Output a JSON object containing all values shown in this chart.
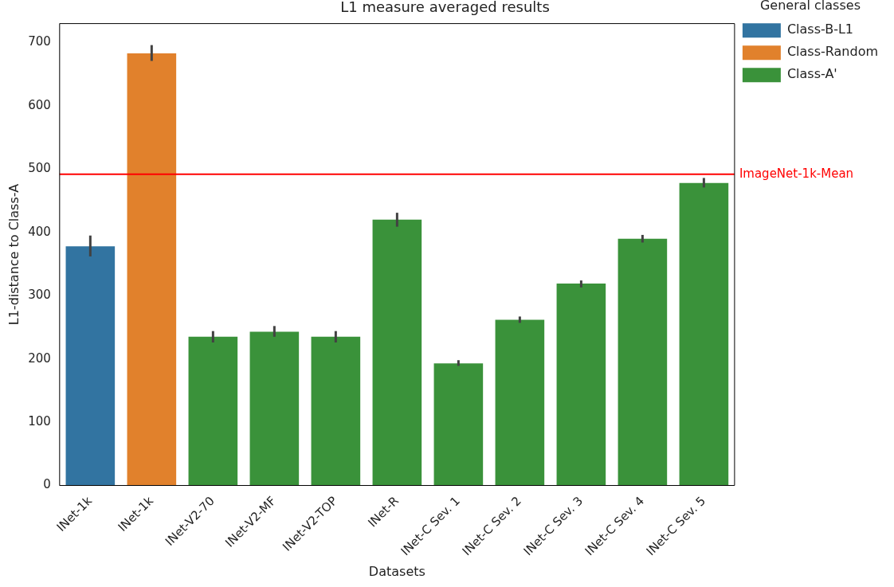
{
  "chart_data": {
    "type": "bar",
    "title": "L1 measure averaged results",
    "xlabel": "Datasets",
    "ylabel": "L1-distance to Class-A",
    "legend_title": "General classes",
    "legend": "top right",
    "grid": false,
    "categories": [
      "INet-1k",
      "INet-1k",
      "INet-V2-70",
      "INet-V2-MF",
      "INet-V2-TOP",
      "INet-R",
      "INet-C Sev. 1",
      "INet-C Sev. 2",
      "INet-C Sev. 3",
      "INet-C Sev. 4",
      "INet-C Sev. 5"
    ],
    "series": [
      {
        "name": "Class-B-L1",
        "color": "#3274a1",
        "values": [
          378,
          null,
          null,
          null,
          null,
          null,
          null,
          null,
          null,
          null,
          null
        ],
        "errors": [
          [
            362,
            395
          ],
          null,
          null,
          null,
          null,
          null,
          null,
          null,
          null,
          null,
          null
        ]
      },
      {
        "name": "Class-Random",
        "color": "#e1812c",
        "values": [
          null,
          683,
          null,
          null,
          null,
          null,
          null,
          null,
          null,
          null,
          null
        ],
        "errors": [
          null,
          [
            671,
            696
          ],
          null,
          null,
          null,
          null,
          null,
          null,
          null,
          null,
          null
        ]
      },
      {
        "name": "Class-A'",
        "color": "#3a923a",
        "values": [
          null,
          null,
          235,
          243,
          235,
          420,
          193,
          262,
          319,
          390,
          478
        ],
        "errors": [
          null,
          null,
          [
            226,
            244
          ],
          [
            235,
            252
          ],
          [
            226,
            244
          ],
          [
            409,
            431
          ],
          [
            189,
            198
          ],
          [
            257,
            267
          ],
          [
            313,
            324
          ],
          [
            384,
            396
          ],
          [
            471,
            486
          ]
        ]
      }
    ],
    "ylim": [
      0,
      730
    ],
    "yticks": [
      0,
      100,
      200,
      300,
      400,
      500,
      600,
      700
    ],
    "ref_lines": [
      {
        "axis": "y",
        "value": 492,
        "label": "ImageNet-1k-Mean",
        "color": "#ff0000"
      }
    ]
  }
}
